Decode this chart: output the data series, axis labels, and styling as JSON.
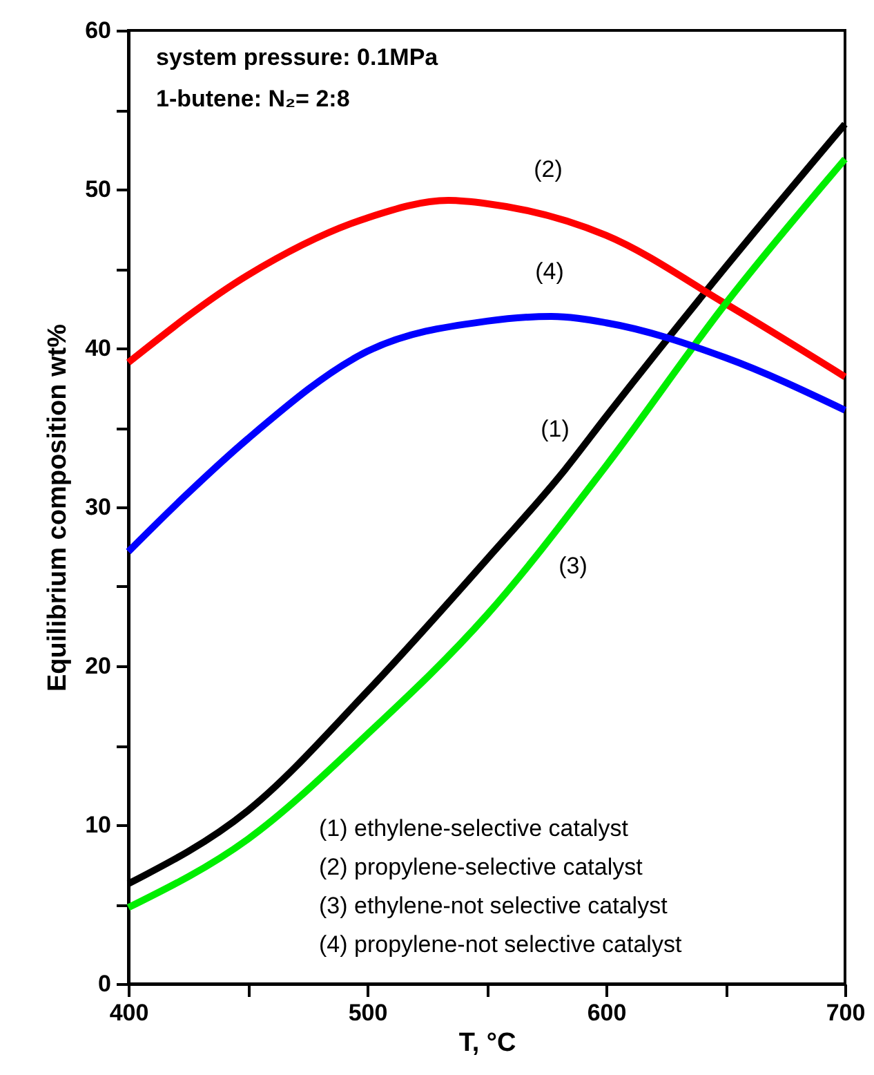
{
  "chart_data": {
    "type": "line",
    "xlabel": "T, °C",
    "ylabel": "Equilibrium composition wt%",
    "xlim": [
      400,
      700
    ],
    "ylim": [
      0,
      60
    ],
    "xticks": [
      400,
      {
        "value": 450,
        "label": null
      },
      500,
      {
        "value": 550,
        "label": null
      },
      600,
      {
        "value": 650,
        "label": null
      },
      700
    ],
    "yticks": [
      0,
      {
        "value": 5,
        "label": null
      },
      10,
      {
        "value": 15,
        "label": null
      },
      20,
      {
        "value": 25,
        "label": null
      },
      30,
      {
        "value": 35,
        "label": null
      },
      40,
      {
        "value": 45,
        "label": null
      },
      50,
      {
        "value": 55,
        "label": null
      },
      60
    ],
    "series": [
      {
        "color": "#000000",
        "x": [
          400,
          450,
          500,
          550,
          583,
          600,
          650,
          700
        ],
        "values": [
          6.3,
          10.9,
          18.4,
          26.7,
          32.4,
          35.7,
          45.1,
          54.1
        ]
      },
      {
        "color": "#ff0000",
        "x": [
          400,
          450,
          500,
          534,
          550,
          600,
          650,
          700
        ],
        "values": [
          39.1,
          44.6,
          48.2,
          49.3,
          49.1,
          47.1,
          42.8,
          38.2
        ]
      },
      {
        "color": "#00ee00",
        "x": [
          400,
          450,
          500,
          550,
          600,
          650,
          700
        ],
        "values": [
          4.8,
          9.1,
          15.7,
          23.2,
          32.6,
          42.8,
          51.9
        ]
      },
      {
        "color": "#0000ff",
        "x": [
          400,
          423,
          450,
          500,
          550,
          577,
          600,
          650,
          700
        ],
        "values": [
          27.2,
          30.6,
          34.3,
          39.8,
          41.7,
          42.0,
          41.6,
          39.4,
          36.1
        ]
      }
    ],
    "annotations": [
      "system pressure: 0.1MPa",
      "1-butene: N₂= 2:8",
      "(1) ethylene-selective catalyst",
      "(2) propylene-selective catalyst",
      "(3) ethylene-not selective catalyst",
      "(4) propylene-not selective catalyst",
      "(1)",
      "(2)",
      "(3)",
      "(4)"
    ]
  }
}
